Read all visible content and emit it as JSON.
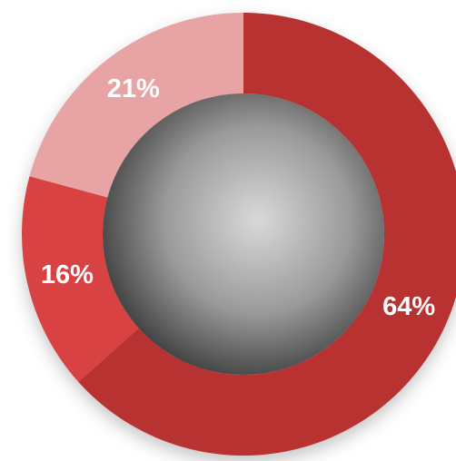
{
  "chart_data": {
    "type": "donut",
    "categories": [
      null,
      null,
      null
    ],
    "values": [
      64,
      16,
      21
    ],
    "value_labels": [
      "64%",
      "16%",
      "21%"
    ],
    "colors": [
      "#b83233",
      "#d84242",
      "#e8a3a4"
    ]
  }
}
